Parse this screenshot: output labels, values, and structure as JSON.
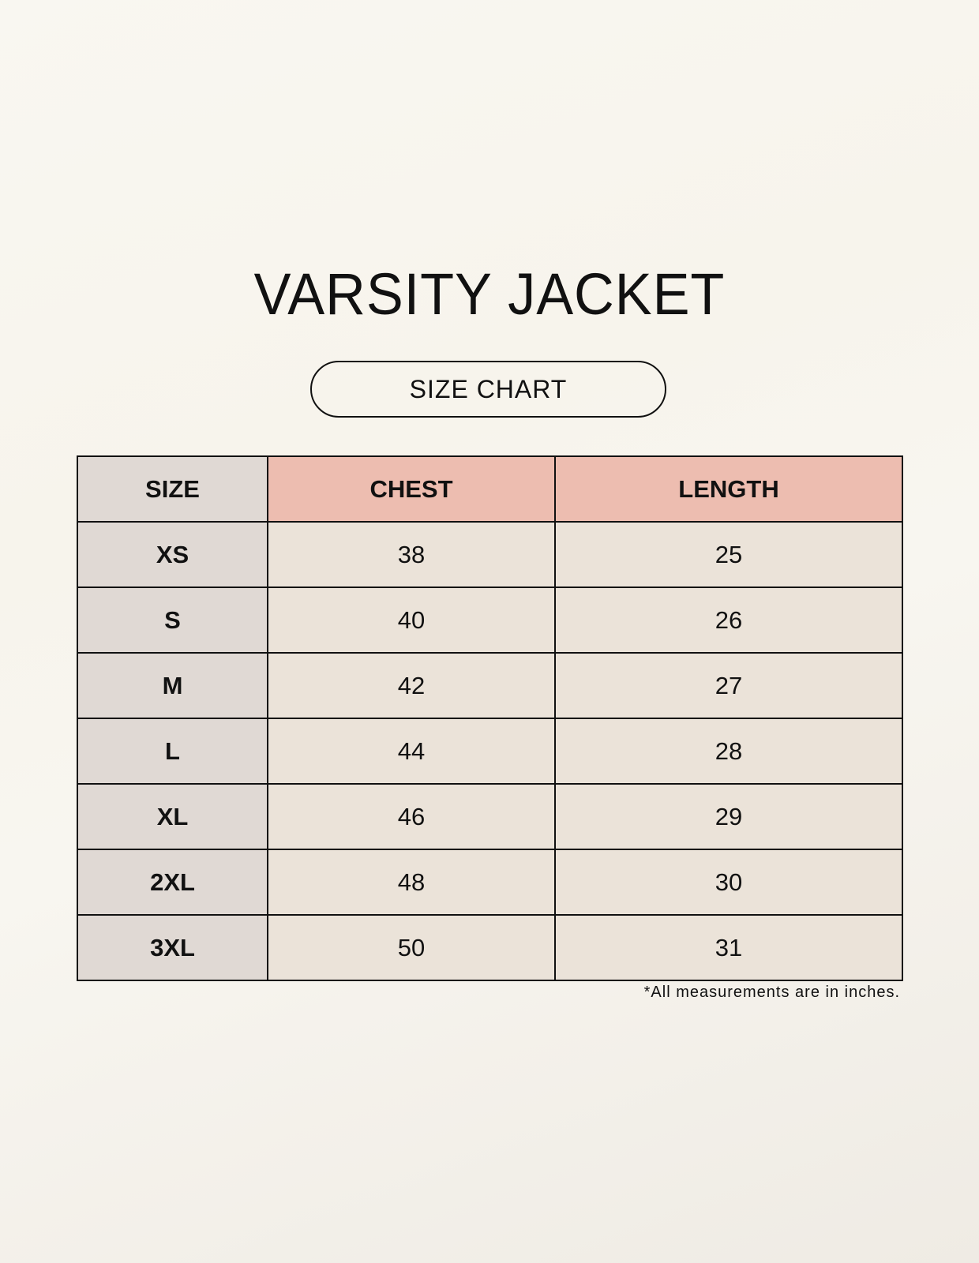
{
  "title": "VARSITY JACKET",
  "subtitle": "SIZE CHART",
  "colors": {
    "size_column": "#e0d9d4",
    "measure_header": "#edbdb0",
    "cell": "#ebe3d9"
  },
  "table": {
    "headers": [
      "SIZE",
      "CHEST",
      "LENGTH"
    ],
    "rows": [
      [
        "XS",
        "38",
        "25"
      ],
      [
        "S",
        "40",
        "26"
      ],
      [
        "M",
        "42",
        "27"
      ],
      [
        "L",
        "44",
        "28"
      ],
      [
        "XL",
        "46",
        "29"
      ],
      [
        "2XL",
        "48",
        "30"
      ],
      [
        "3XL",
        "50",
        "31"
      ]
    ]
  },
  "footnote": "*All measurements are in inches."
}
